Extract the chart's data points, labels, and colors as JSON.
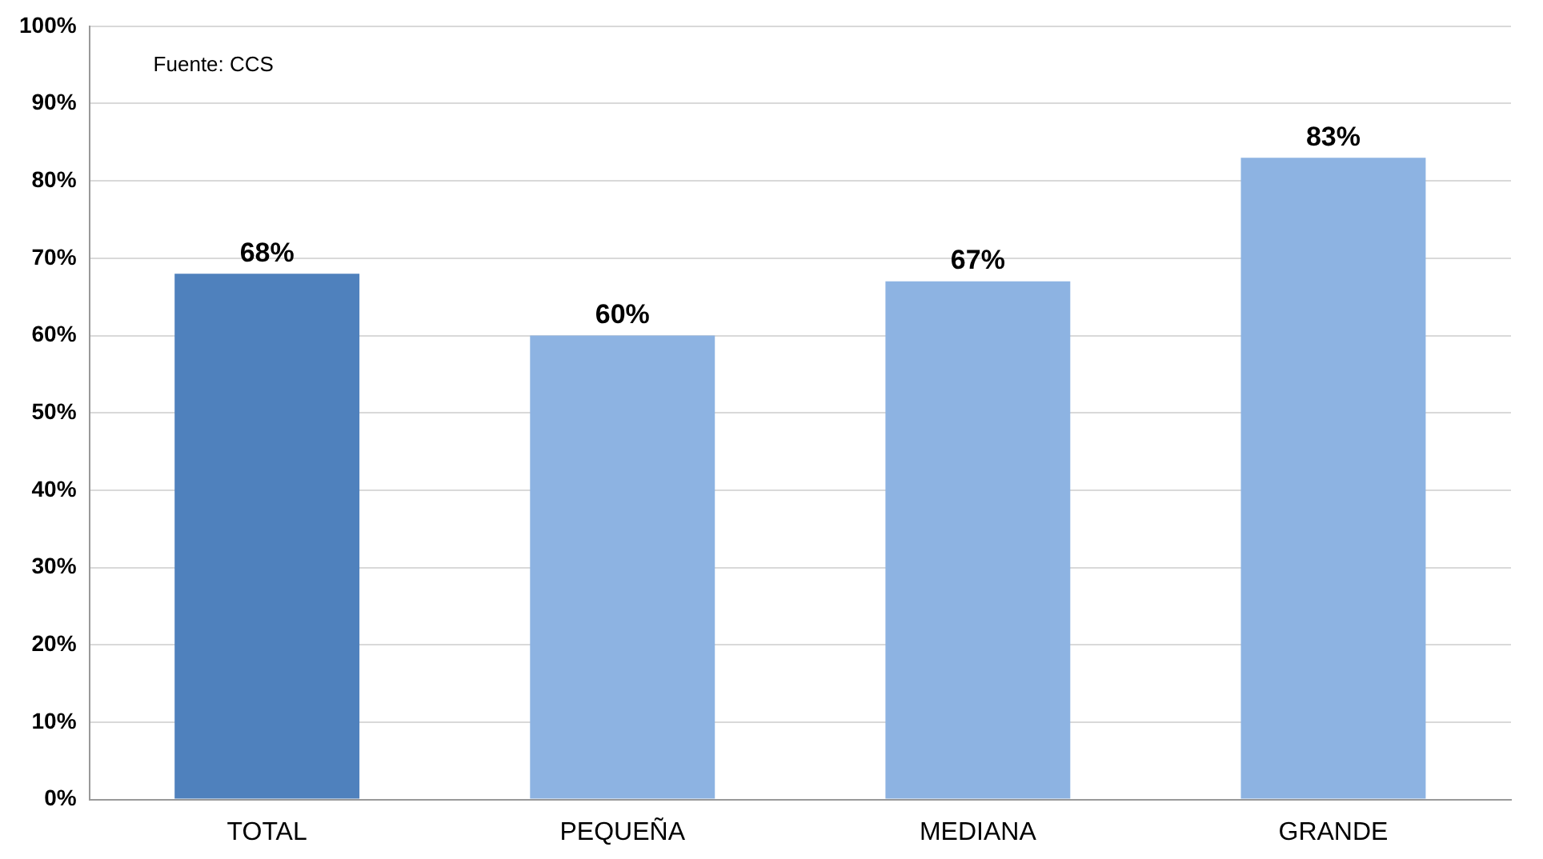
{
  "chart_data": {
    "type": "bar",
    "categories": [
      "TOTAL",
      "PEQUEÑA",
      "MEDIANA",
      "GRANDE"
    ],
    "values": [
      68,
      60,
      67,
      83
    ],
    "colors": [
      "#4f81bd",
      "#8db3e2",
      "#8db3e2",
      "#8db3e2"
    ],
    "value_labels": [
      "68%",
      "60%",
      "67%",
      "83%"
    ],
    "ylim": [
      0,
      100
    ],
    "yticks": [
      {
        "value": 0,
        "label": "0%"
      },
      {
        "value": 10,
        "label": "10%"
      },
      {
        "value": 20,
        "label": "20%"
      },
      {
        "value": 30,
        "label": "30%"
      },
      {
        "value": 40,
        "label": "40%"
      },
      {
        "value": 50,
        "label": "50%"
      },
      {
        "value": 60,
        "label": "60%"
      },
      {
        "value": 70,
        "label": "70%"
      },
      {
        "value": 80,
        "label": "80%"
      },
      {
        "value": 90,
        "label": "90%"
      },
      {
        "value": 100,
        "label": "100%"
      }
    ],
    "grid": "y",
    "annotations": [
      "Fuente: CCS"
    ]
  }
}
